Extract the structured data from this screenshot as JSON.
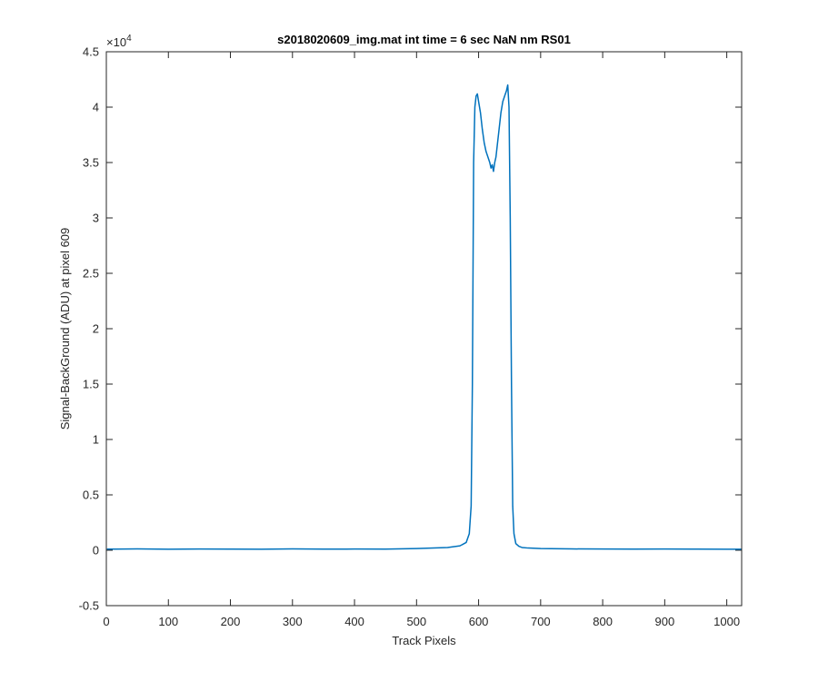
{
  "chart_data": {
    "type": "line",
    "title": "s2018020609_img.mat int time = 6 sec  NaN nm RS01",
    "xlabel": "Track Pixels",
    "ylabel": "Signal-BackGround (ADU) at pixel 609",
    "xlim": [
      0,
      1024
    ],
    "ylim": [
      -5000,
      45000
    ],
    "x_ticks": [
      0,
      100,
      200,
      300,
      400,
      500,
      600,
      700,
      800,
      900,
      1000
    ],
    "x_tick_labels": [
      "0",
      "100",
      "200",
      "300",
      "400",
      "500",
      "600",
      "700",
      "800",
      "900",
      "1000"
    ],
    "y_ticks": [
      -5000,
      0,
      5000,
      10000,
      15000,
      20000,
      25000,
      30000,
      35000,
      40000,
      45000
    ],
    "y_tick_labels": [
      "-0.5",
      "0",
      "0.5",
      "1",
      "1.5",
      "2",
      "2.5",
      "3",
      "3.5",
      "4",
      "4.5"
    ],
    "y_exponent_label": "×10",
    "y_exponent_power": "4",
    "grid": false,
    "series": [
      {
        "color": "#0072BD",
        "x": [
          1,
          50,
          100,
          150,
          200,
          250,
          300,
          350,
          400,
          450,
          500,
          550,
          570,
          580,
          585,
          588,
          590,
          592,
          594,
          596,
          598,
          600,
          603,
          606,
          609,
          612,
          615,
          618,
          620,
          622,
          624,
          626,
          628,
          630,
          633,
          636,
          639,
          642,
          645,
          647,
          649,
          651,
          653,
          655,
          657,
          660,
          665,
          670,
          680,
          700,
          750,
          800,
          850,
          900,
          950,
          1000,
          1024
        ],
        "y": [
          100,
          120,
          90,
          110,
          100,
          95,
          120,
          100,
          110,
          105,
          150,
          250,
          400,
          700,
          1500,
          4000,
          15000,
          35000,
          40000,
          41000,
          41200,
          40500,
          39500,
          38000,
          36800,
          36000,
          35500,
          35000,
          34500,
          34800,
          34200,
          35000,
          35500,
          36500,
          38000,
          39500,
          40500,
          41000,
          41500,
          42000,
          40000,
          30000,
          15000,
          4000,
          1500,
          600,
          350,
          250,
          200,
          150,
          120,
          110,
          100,
          110,
          100,
          95,
          90
        ]
      }
    ]
  }
}
